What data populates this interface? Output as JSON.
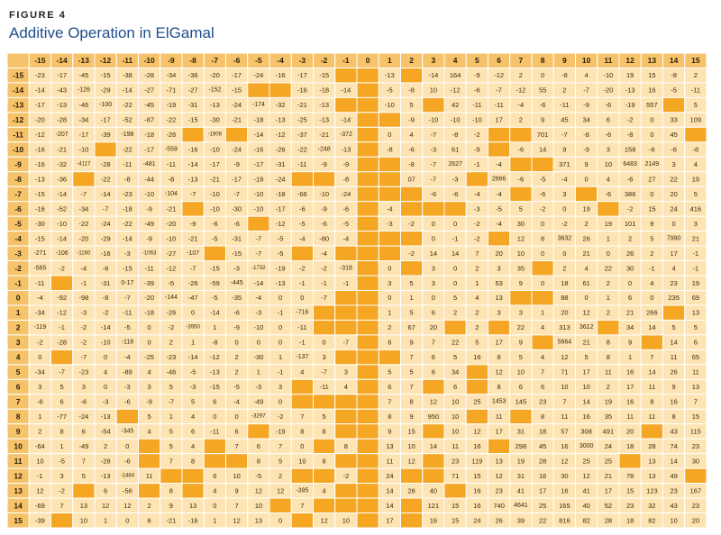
{
  "figure": {
    "label": "FIGURE 4",
    "title": "Additive Operation in ElGamal"
  },
  "colors": {
    "header_bg": "#f6c36a",
    "cell_bg": "#fde4b2",
    "empty_bg": "#f5a623",
    "grid_line": "#ffffff",
    "title_color": "#1f4e8c"
  },
  "chart_data": {
    "type": "table",
    "title": "Additive Operation in ElGamal",
    "col_headers": [
      "-15",
      "-14",
      "-13",
      "-12",
      "-11",
      "-10",
      "-9",
      "-8",
      "-7",
      "-6",
      "-5",
      "-4",
      "-3",
      "-2",
      "-1",
      "0",
      "1",
      "2",
      "3",
      "4",
      "5",
      "6",
      "7",
      "8",
      "9",
      "10",
      "11",
      "12",
      "13",
      "14",
      "15"
    ],
    "row_headers": [
      "-15",
      "-14",
      "-13",
      "-12",
      "-11",
      "-10",
      "-9",
      "-8",
      "-7",
      "-6",
      "-5",
      "-4",
      "-3",
      "-2",
      "-1",
      "0",
      "1",
      "2",
      "3",
      "4",
      "5",
      "6",
      "7",
      "8",
      "9",
      "10",
      "11",
      "12",
      "13",
      "14",
      "15"
    ],
    "rows": [
      [
        "-23",
        "-17",
        "-45",
        "-15",
        "-38",
        "-28",
        "-34",
        "-36",
        "-20",
        "-17",
        "-24",
        "-16",
        "-17",
        "-15",
        "",
        "",
        "-13",
        "",
        "-14",
        "164",
        "-9",
        "-12",
        "2",
        "0",
        "-8",
        "4",
        "-10",
        "19",
        "15",
        "-8",
        "2"
      ],
      [
        "-14",
        "-43",
        "-126",
        "-29",
        "-14",
        "-27",
        "-71",
        "-27",
        "-152",
        "-15",
        "",
        "",
        "-16",
        "-18",
        "-14",
        "",
        "-5",
        "-8",
        "10",
        "-12",
        "-6",
        "-7",
        "-12",
        "55",
        "2",
        "-7",
        "-20",
        "-13",
        "16",
        "-5",
        "-11"
      ],
      [
        "-17",
        "-13",
        "-46",
        "-100",
        "-22",
        "-45",
        "-19",
        "-31",
        "-13",
        "-24",
        "-174",
        "-32",
        "-21",
        "-13",
        "",
        "",
        "-10",
        "5",
        "",
        "42",
        "-11",
        "-11",
        "-4",
        "-6",
        "-11",
        "-9",
        "-6",
        "-19",
        "557",
        "",
        "5"
      ],
      [
        "-20",
        "-28",
        "-34",
        "-17",
        "-52",
        "-87",
        "-22",
        "-15",
        "-30",
        "-21",
        "-18",
        "-13",
        "-25",
        "-13",
        "-14",
        "",
        "",
        "-9",
        "-10",
        "-10",
        "-10",
        "17",
        "2",
        "9",
        "45",
        "34",
        "6",
        "-2",
        "0",
        "33",
        "109"
      ],
      [
        "-12",
        "-207",
        "-17",
        "-39",
        "-198",
        "-18",
        "-26",
        "",
        "-1908",
        "",
        "-14",
        "-12",
        "-37",
        "-21",
        "-372",
        "",
        "0",
        "4",
        "-7",
        "-8",
        "-2",
        "",
        "",
        "701",
        "-7",
        "-8",
        "-6",
        "-8",
        "0",
        "45",
        ""
      ],
      [
        "-16",
        "-21",
        "-10",
        "",
        "-22",
        "-17",
        "-559",
        "-16",
        "-10",
        "-24",
        "-16",
        "-26",
        "-22",
        "-248",
        "-13",
        "",
        "-8",
        "-6",
        "-3",
        "61",
        "-9",
        "",
        "-6",
        "14",
        "9",
        "-9",
        "3",
        "158",
        "-6",
        "-6",
        "-8"
      ],
      [
        "-16",
        "-32",
        "-4117",
        "-28",
        "-11",
        "-481",
        "-11",
        "-14",
        "-17",
        "-9",
        "-17",
        "-31",
        "-11",
        "-9",
        "-9",
        "",
        "",
        "-8",
        "-7",
        "2627",
        "-1",
        "-4",
        "",
        "",
        "371",
        "9",
        "10",
        "6483",
        "2149",
        "3",
        "4"
      ],
      [
        "-13",
        "-36",
        "",
        "-22",
        "-8",
        "-44",
        "-8",
        "-13",
        "-21",
        "-17",
        "-19",
        "-24",
        "",
        "",
        "-8",
        "",
        "",
        "07",
        "-7",
        "-3",
        "",
        "2866",
        "-6",
        "-5",
        "-4",
        "0",
        "4",
        "-6",
        "27",
        "22",
        "19"
      ],
      [
        "-15",
        "-14",
        "-7",
        "-14",
        "-23",
        "-10",
        "-104",
        "-7",
        "-10",
        "-7",
        "-10",
        "-18",
        "-66",
        "-10",
        "-24",
        "",
        "",
        "",
        "-6",
        "-6",
        "-4",
        "-4",
        "",
        "-6",
        "3",
        "",
        "-6",
        "386",
        "0",
        "20",
        "5"
      ],
      [
        "-16",
        "-52",
        "-34",
        "-7",
        "-18",
        "-9",
        "-21",
        "",
        "-10",
        "-30",
        "-10",
        "-17",
        "-6",
        "-9",
        "-6",
        "",
        "-4",
        "",
        "",
        "",
        "-3",
        "-5",
        "5",
        "-2",
        "0",
        "19",
        "",
        "-2",
        "15",
        "24",
        "416"
      ],
      [
        "-30",
        "-10",
        "-22",
        "-24",
        "-22",
        "-49",
        "-20",
        "-9",
        "-6",
        "-6",
        "",
        "-12",
        "-5",
        "-6",
        "-5",
        "",
        "-3",
        "-2",
        "0",
        "0",
        "-2",
        "-4",
        "30",
        "0",
        "-2",
        "2",
        "19",
        "101",
        "9",
        "0",
        "3"
      ],
      [
        "-15",
        "-14",
        "-20",
        "-29",
        "-14",
        "-9",
        "-10",
        "-21",
        "-5",
        "-31",
        "-7",
        "-5",
        "-4",
        "-80",
        "-4",
        "",
        "",
        "",
        "0",
        "-1",
        "-2",
        "",
        "12",
        "8",
        "3632",
        "26",
        "1",
        "2",
        "5",
        "7990",
        "21"
      ],
      [
        "-271",
        "-106",
        "-1160",
        "-16",
        "-3",
        "-1063",
        "-27",
        "-107",
        "",
        "-15",
        "-7",
        "-5",
        "",
        "-4",
        "",
        "",
        "",
        "-2",
        "14",
        "14",
        "7",
        "20",
        "10",
        "0",
        "0",
        "21",
        "0",
        "26",
        "2",
        "17",
        "-1"
      ],
      [
        "-565",
        "-2",
        "-4",
        "-6",
        "-15",
        "-11",
        "-12",
        "-7",
        "-15",
        "-3",
        "-1732",
        "-19",
        "-2",
        "-2",
        "-318",
        "",
        "0",
        "",
        "3",
        "0",
        "2",
        "3",
        "35",
        "",
        "2",
        "4",
        "22",
        "30",
        "-1",
        "4",
        "-1"
      ],
      [
        "-11",
        "",
        "-1",
        "-31",
        "0-17",
        "-39",
        "-5",
        "-26",
        "-59",
        "-445",
        "-14",
        "-13",
        "-1",
        "-1",
        "-1",
        "",
        "3",
        "5",
        "3",
        "0",
        "1",
        "53",
        "9",
        "0",
        "18",
        "61",
        "2",
        "0",
        "4",
        "23",
        "19"
      ],
      [
        "-4",
        "-92",
        "-98",
        "-8",
        "-7",
        "-20",
        "-144",
        "-47",
        "-5",
        "-35",
        "-4",
        "0",
        "0",
        "-7",
        "",
        "",
        "0",
        "1",
        "0",
        "5",
        "4",
        "13",
        "",
        "",
        "88",
        "0",
        "1",
        "6",
        "0",
        "235",
        "69"
      ],
      [
        "-34",
        "-12",
        "-3",
        "-2",
        "-11",
        "-18",
        "-26",
        "0",
        "-14",
        "-6",
        "-3",
        "-1",
        "-716",
        "",
        "",
        "",
        "1",
        "5",
        "6",
        "2",
        "2",
        "3",
        "3",
        "1",
        "20",
        "12",
        "2",
        "21",
        "266",
        "",
        "13"
      ],
      [
        "-119",
        "-1",
        "-2",
        "-14",
        "-5",
        "0",
        "-2",
        "-3950",
        "1",
        "-9",
        "-10",
        "0",
        "-11",
        "",
        "",
        "",
        "2",
        "67",
        "20",
        "",
        "2",
        "",
        "22",
        "4",
        "313",
        "3612",
        "",
        "34",
        "14",
        "5",
        "5"
      ],
      [
        "-2",
        "-28",
        "-2",
        "-10",
        "-118",
        "0",
        "2",
        "1",
        "-8",
        "0",
        "0",
        "0",
        "-1",
        "0",
        "-7",
        "",
        "6",
        "9",
        "7",
        "22",
        "5",
        "17",
        "9",
        "",
        "5664",
        "21",
        "8",
        "9",
        "",
        "14",
        "6"
      ],
      [
        "0",
        "",
        "-7",
        "0",
        "-4",
        "-25",
        "-23",
        "-14",
        "-12",
        "2",
        "-30",
        "1",
        "-137",
        "3",
        "",
        "",
        "",
        "7",
        "6",
        "5",
        "16",
        "8",
        "5",
        "4",
        "12",
        "5",
        "8",
        "1",
        "7",
        "11",
        "65"
      ],
      [
        "-34",
        "-7",
        "-23",
        "4",
        "-89",
        "4",
        "-46",
        "-5",
        "-13",
        "2",
        "1",
        "-1",
        "4",
        "-7",
        "3",
        "",
        "5",
        "5",
        "6",
        "34",
        "",
        "12",
        "10",
        "7",
        "71",
        "17",
        "11",
        "16",
        "14",
        "26",
        "11"
      ],
      [
        "3",
        "5",
        "3",
        "0",
        "-3",
        "3",
        "5",
        "-3",
        "-15",
        "-5",
        "-3",
        "3",
        "",
        "-11",
        "4",
        "",
        "6",
        "7",
        "",
        "6",
        "",
        "8",
        "6",
        "6",
        "10",
        "10",
        "2",
        "17",
        "11",
        "9",
        "13"
      ],
      [
        "-6",
        "6",
        "-6",
        "-3",
        "-6",
        "-9",
        "-7",
        "5",
        "6",
        "-4",
        "-49",
        "0",
        "",
        "",
        "",
        "",
        "7",
        "8",
        "12",
        "10",
        "25",
        "1453",
        "145",
        "23",
        "7",
        "14",
        "19",
        "16",
        "8",
        "16",
        "7"
      ],
      [
        "1",
        "-77",
        "-24",
        "-13",
        "",
        "5",
        "1",
        "4",
        "0",
        "0",
        "-3297",
        "-2",
        "7",
        "5",
        "",
        "",
        "8",
        "9",
        "950",
        "10",
        "",
        "11",
        "",
        "8",
        "11",
        "16",
        "35",
        "11",
        "11",
        "8",
        "15"
      ],
      [
        "2",
        "8",
        "6",
        "-54",
        "-345",
        "4",
        "5",
        "6",
        "-11",
        "6",
        "",
        "-19",
        "8",
        "8",
        "",
        "",
        "9",
        "15",
        "",
        "10",
        "12",
        "17",
        "31",
        "18",
        "57",
        "308",
        "491",
        "20",
        "",
        "43",
        "115"
      ],
      [
        "-64",
        "1",
        "-49",
        "2",
        "0",
        "",
        "5",
        "4",
        "",
        "7",
        "6",
        "7",
        "0",
        "",
        "8",
        "",
        "13",
        "10",
        "14",
        "11",
        "16",
        "",
        "298",
        "45",
        "16",
        "3000",
        "24",
        "18",
        "28",
        "74",
        "23"
      ],
      [
        "10",
        "-5",
        "7",
        "-28",
        "-6",
        "",
        "7",
        "8",
        "",
        "",
        "8",
        "5",
        "10",
        "8",
        "",
        "",
        "11",
        "12",
        "",
        "23",
        "119",
        "13",
        "19",
        "28",
        "12",
        "25",
        "25",
        "",
        "13",
        "14",
        "30"
      ],
      [
        "-1",
        "3",
        "5",
        "-13",
        "-1484",
        "11",
        "",
        "",
        "6",
        "10",
        "-5",
        "2",
        "",
        "",
        "-2",
        "",
        "24",
        "",
        "",
        "71",
        "15",
        "12",
        "31",
        "16",
        "30",
        "12",
        "21",
        "78",
        "13",
        "49",
        ""
      ],
      [
        "12",
        "-2",
        "",
        "6",
        "-56",
        "",
        "8",
        "",
        "4",
        "9",
        "12",
        "12",
        "-395",
        "4",
        "",
        "",
        "14",
        "28",
        "40",
        "",
        "16",
        "23",
        "41",
        "17",
        "16",
        "41",
        "17",
        "15",
        "123",
        "23",
        "167"
      ],
      [
        "-69",
        "7",
        "13",
        "12",
        "12",
        "2",
        "9",
        "13",
        "0",
        "7",
        "10",
        "",
        "7",
        "",
        "",
        "",
        "14",
        "",
        "121",
        "15",
        "16",
        "740",
        "4641",
        "25",
        "165",
        "40",
        "52",
        "23",
        "32",
        "43",
        "23"
      ],
      [
        "-39",
        "",
        "10",
        "1",
        "0",
        "6",
        "-21",
        "-16",
        "1",
        "12",
        "13",
        "0",
        "",
        "12",
        "10",
        "",
        "17",
        "",
        "16",
        "15",
        "24",
        "26",
        "39",
        "22",
        "816",
        "82",
        "28",
        "18",
        "82",
        "10",
        "20"
      ]
    ]
  }
}
